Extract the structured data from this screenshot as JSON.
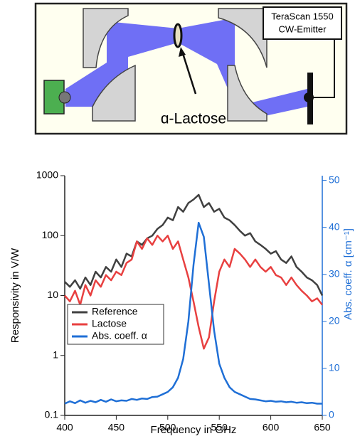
{
  "diagram": {
    "emitter_label": [
      "TeraScan 1550",
      "CW-Emitter"
    ],
    "sample_label": "ɑ-Lactose"
  },
  "chart_data": {
    "type": "line",
    "x_label": "Frequency in GHz",
    "y_label": "Responsivity  in V/W",
    "y2_label": "Abs. coeff. α [cm⁻¹]",
    "x": [
      400,
      405,
      410,
      415,
      420,
      425,
      430,
      435,
      440,
      445,
      450,
      455,
      460,
      465,
      470,
      475,
      480,
      485,
      490,
      495,
      500,
      505,
      510,
      515,
      520,
      525,
      530,
      535,
      540,
      545,
      550,
      555,
      560,
      565,
      570,
      575,
      580,
      585,
      590,
      595,
      600,
      605,
      610,
      615,
      620,
      625,
      630,
      635,
      640,
      645,
      650
    ],
    "series": [
      {
        "name": "Reference",
        "color": "#404040",
        "values": [
          17,
          14,
          18,
          13,
          20,
          15,
          25,
          20,
          30,
          25,
          40,
          30,
          50,
          45,
          80,
          70,
          90,
          100,
          130,
          150,
          200,
          180,
          300,
          250,
          350,
          400,
          480,
          300,
          350,
          250,
          280,
          200,
          180,
          150,
          120,
          100,
          110,
          80,
          70,
          60,
          50,
          55,
          40,
          35,
          45,
          30,
          25,
          20,
          18,
          15,
          10
        ]
      },
      {
        "name": "Lactose",
        "color": "#e84040",
        "values": [
          10,
          8,
          12,
          7,
          15,
          10,
          18,
          14,
          22,
          18,
          25,
          22,
          35,
          40,
          80,
          60,
          90,
          70,
          100,
          80,
          100,
          60,
          80,
          40,
          20,
          8,
          3,
          1.3,
          2,
          8,
          25,
          40,
          30,
          60,
          50,
          40,
          30,
          40,
          30,
          25,
          30,
          22,
          20,
          15,
          20,
          15,
          12,
          10,
          8,
          9,
          7
        ]
      },
      {
        "name": "Abs. coeff. α",
        "color": "#1f6fd6",
        "axis": "y2",
        "values": [
          2.5,
          3,
          2.6,
          3.2,
          2.7,
          3.1,
          2.8,
          3.3,
          2.9,
          3.4,
          3,
          3.2,
          3.1,
          3.5,
          3.3,
          3.6,
          3.5,
          3.9,
          4,
          4.5,
          5,
          6,
          8,
          12,
          20,
          32,
          41,
          38,
          28,
          18,
          11,
          8,
          6,
          5,
          4.5,
          4,
          3.5,
          3.4,
          3.2,
          3,
          3.1,
          2.9,
          3,
          2.8,
          2.9,
          2.7,
          2.8,
          2.6,
          2.7,
          2.5,
          2.5
        ]
      }
    ],
    "xlim": [
      400,
      650
    ],
    "xticks": [
      400,
      450,
      500,
      550,
      600,
      650
    ],
    "yscale": "log",
    "ylim": [
      0.1,
      1000
    ],
    "yticks": [
      0.1,
      1,
      10,
      100,
      1000
    ],
    "y2lim": [
      0,
      51
    ],
    "y2ticks": [
      0,
      10,
      20,
      30,
      40,
      50
    ],
    "y2_color": "#1f6fd6",
    "legend": "lower-left"
  }
}
